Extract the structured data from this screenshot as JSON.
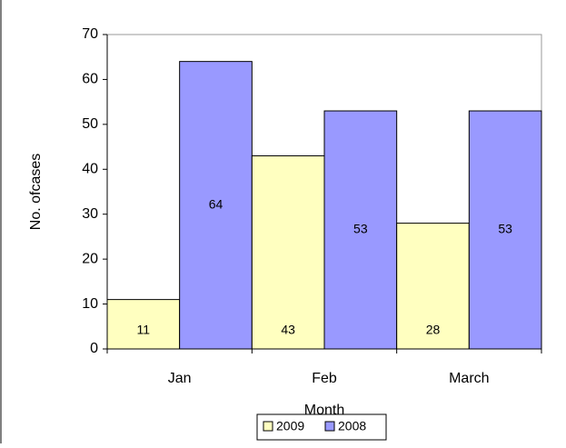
{
  "chart_data": {
    "type": "bar",
    "x_label": "Month",
    "y_label": "No. ofcases",
    "categories": [
      "Jan",
      "Feb",
      "March"
    ],
    "series": [
      {
        "name": "2009",
        "color": "#ffffc0",
        "values": [
          11,
          43,
          28
        ]
      },
      {
        "name": "2008",
        "color": "#9999ff",
        "values": [
          64,
          53,
          53
        ]
      }
    ],
    "ylim": [
      0,
      70
    ],
    "yticks": [
      0,
      10,
      20,
      30,
      40,
      50,
      60,
      70
    ],
    "legend": "bottom"
  }
}
